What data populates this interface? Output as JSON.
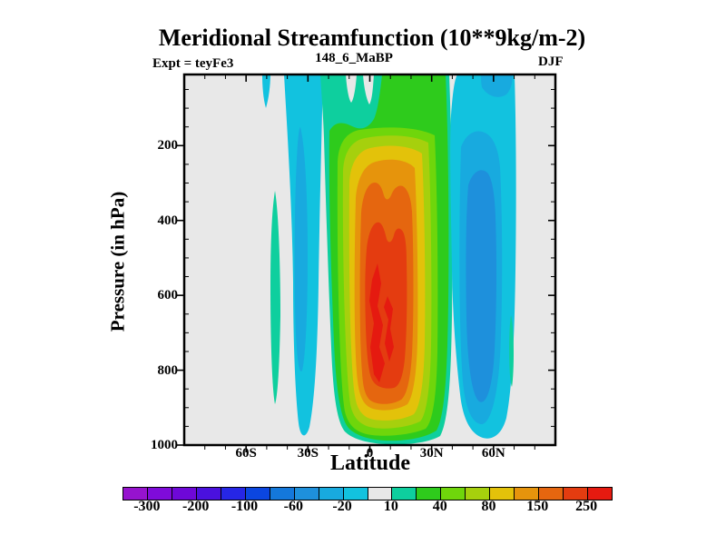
{
  "header": {
    "title": "Meridional Streamfunction (10**9kg/m-2)",
    "experiment": "Expt = teyFe3",
    "run_id": "148_6_MaBP",
    "season": "DJF"
  },
  "chart_data": {
    "type": "filled_contour",
    "title": "Meridional Streamfunction (10**9kg/m-2)",
    "subtitle_left": "Expt = teyFe3",
    "subtitle_center": "148_6_MaBP",
    "subtitle_right": "DJF",
    "xlabel": "Latitude",
    "ylabel": "Pressure (in hPa)",
    "grid": false,
    "x_tick_labels": [
      "60S",
      "30S",
      "0",
      "30N",
      "60N"
    ],
    "x_axis": {
      "major_deg": [
        -60,
        -30,
        0,
        30,
        60
      ],
      "minor_step_deg": 10,
      "range_deg": [
        -90,
        90
      ]
    },
    "y_axis": {
      "major_hpa": [
        200,
        400,
        600,
        800,
        1000
      ],
      "minor_step_hpa": 50,
      "range_hpa": [
        10,
        1000
      ]
    },
    "plot_background": "#e8e8e8",
    "frame_color": "#000000",
    "colorbar": {
      "position": "bottom",
      "labels": [
        "-300",
        "-200",
        "-100",
        "-60",
        "-20",
        "10",
        "40",
        "80",
        "150",
        "250"
      ],
      "colors": [
        "#9613ce",
        "#7f0bda",
        "#6e08d8",
        "#4a11de",
        "#2626e6",
        "#0b46e0",
        "#1478db",
        "#1e90dc",
        "#18aadf",
        "#12c2df",
        "#e8e8e8",
        "#0ecf9e",
        "#2ecb1c",
        "#6fd60b",
        "#a6d00d",
        "#e3c20a",
        "#e6940c",
        "#e5660f",
        "#e43c10",
        "#e51a10"
      ]
    },
    "features": [
      {
        "name": "Hadley cell (positive streamfunction)",
        "latitude_extent": "25S to 35N",
        "pressure_extent": "plot top to ~1000 hPa",
        "peak_value": "> 250",
        "peak_location": "0 to 10N, 450-700 hPa"
      },
      {
        "name": "Southern mid-latitude negative cell",
        "latitude_extent": "45S to 32S",
        "pressure_extent": "full column",
        "peak_value": "-40 to -60"
      },
      {
        "name": "Northern mid-latitude negative cell",
        "latitude_extent": "32N to 58N",
        "pressure_extent": "full column",
        "peak_value": "-60"
      },
      {
        "name": "Southern high-latitude weak positive band",
        "latitude_extent": "near 50S",
        "pressure_extent": "350-900 hPa",
        "peak_value": "10 to 20"
      },
      {
        "name": "Northern high-latitude weak positive sliver",
        "latitude_extent": "near 68N",
        "pressure_extent": "650-850 hPa",
        "peak_value": "10 to 20"
      }
    ]
  }
}
